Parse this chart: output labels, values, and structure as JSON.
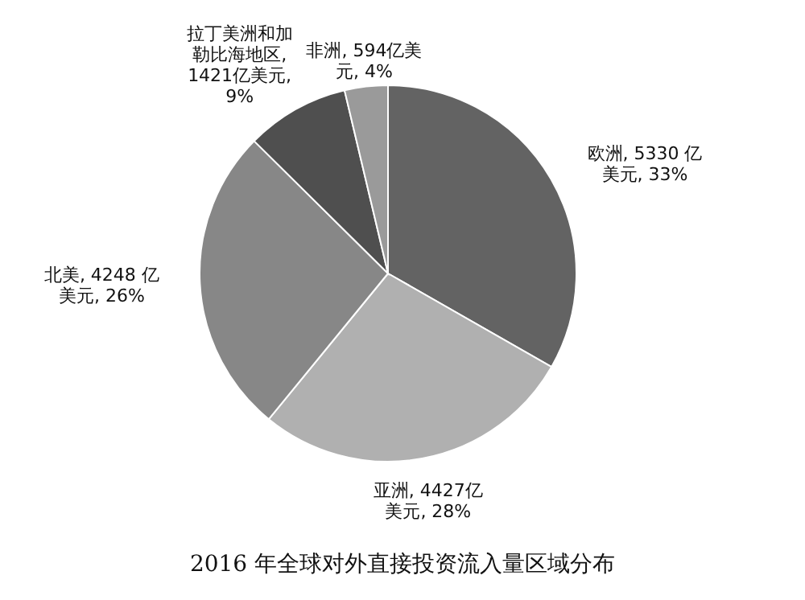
{
  "chart_data": {
    "type": "pie",
    "title": "2016 年全球对外直接投资流入量区域分布",
    "categories": [
      "欧洲",
      "亚洲",
      "北美",
      "拉丁美洲和加勒比海地区",
      "非洲"
    ],
    "values": [
      5330,
      4427,
      4248,
      1421,
      594
    ],
    "colors": [
      "#636363",
      "#b0b0b0",
      "#878787",
      "#4f4f4f",
      "#9a9a9a"
    ],
    "value_labels": [
      ", 5330 亿美元, 33%",
      ", 4427亿美元, 28%",
      ", 4248 亿美元, 26%",
      ", 1421亿美元, 9%",
      ", 594亿美元, 4%"
    ]
  }
}
